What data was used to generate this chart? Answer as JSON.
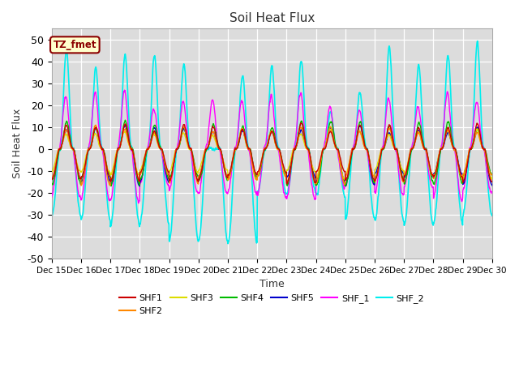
{
  "title": "Soil Heat Flux",
  "ylabel": "Soil Heat Flux",
  "xlabel": "Time",
  "annotation_text": "TZ_fmet",
  "annotation_bg": "#ffffcc",
  "annotation_border": "#8B0000",
  "ylim": [
    -50,
    55
  ],
  "bg_color": "#dcdcdc",
  "series_colors": {
    "SHF1": "#cc0000",
    "SHF2": "#ff8800",
    "SHF3": "#dddd00",
    "SHF4": "#00bb00",
    "SHF5": "#0000cc",
    "SHF_1": "#ff00ff",
    "SHF_2": "#00eeee"
  },
  "xtick_labels": [
    "Dec 15",
    "Dec 16",
    "Dec 17",
    "Dec 18",
    "Dec 19",
    "Dec 20",
    "Dec 21",
    "Dec 22",
    "Dec 23",
    "Dec 24",
    "Dec 25",
    "Dec 26",
    "Dec 27",
    "Dec 28",
    "Dec 29",
    "Dec 30"
  ],
  "ytick_values": [
    -50,
    -40,
    -30,
    -20,
    -10,
    0,
    10,
    20,
    30,
    40,
    50
  ],
  "num_days": 15,
  "points_per_day": 144
}
